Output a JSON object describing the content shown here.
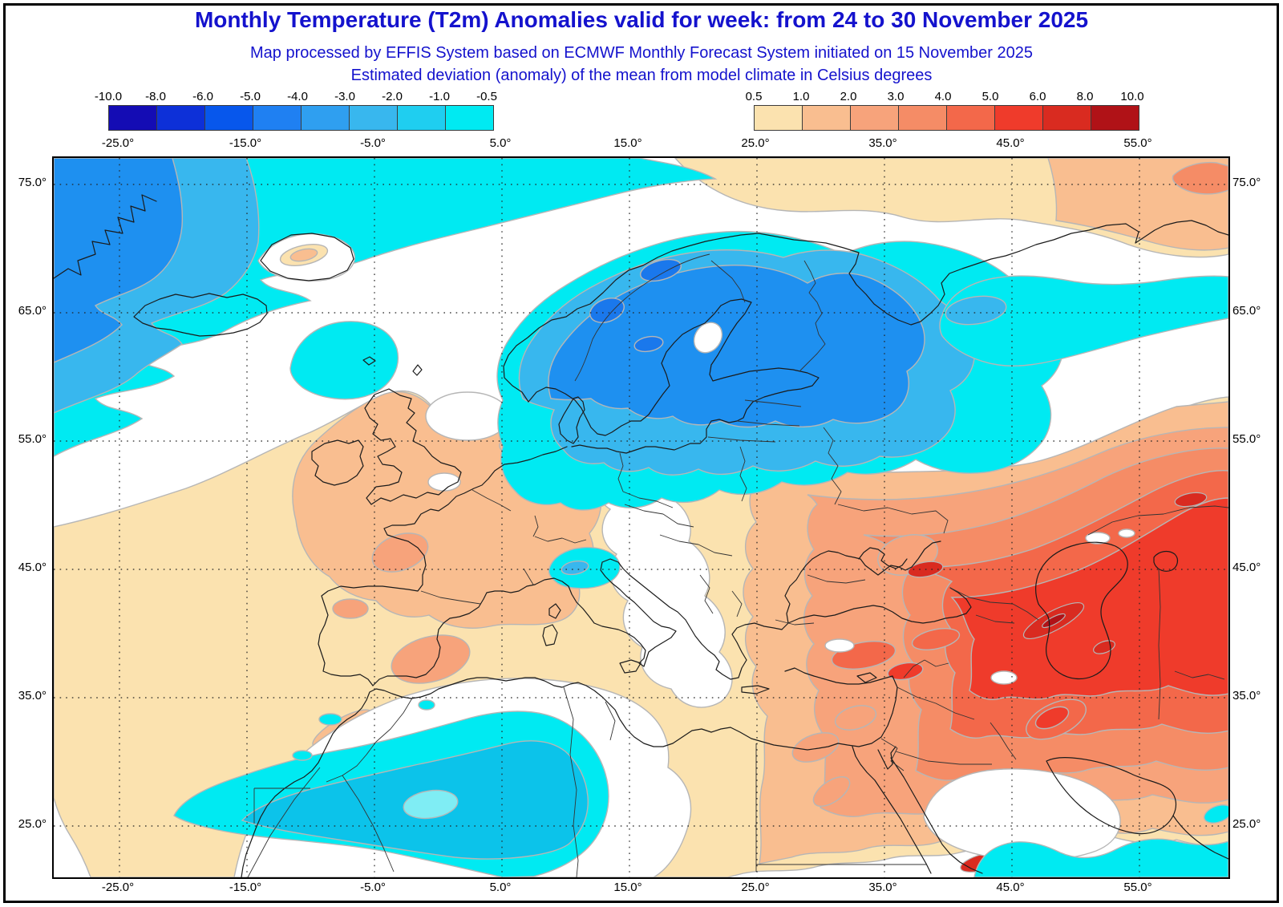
{
  "header": {
    "title": "Monthly Temperature (T2m) Anomalies valid for week: from 24 to 30 November 2025",
    "subtitle1": "Map processed by EFFIS System based on ECMWF Monthly Forecast System initiated on 15 November 2025",
    "subtitle2": "Estimated deviation (anomaly) of the mean from model climate in Celsius degrees"
  },
  "legend_negative": {
    "labels": [
      "-10.0",
      "-8.0",
      "-6.0",
      "-5.0",
      "-4.0",
      "-3.0",
      "-2.0",
      "-1.0",
      "-0.5"
    ],
    "colors": [
      "#140cb4",
      "#0d30d8",
      "#0757ec",
      "#1f80f2",
      "#2f9ff0",
      "#38b7ee",
      "#1fcef0",
      "#00eaf2"
    ]
  },
  "legend_positive": {
    "labels": [
      "0.5",
      "1.0",
      "2.0",
      "3.0",
      "4.0",
      "5.0",
      "6.0",
      "8.0",
      "10.0"
    ],
    "colors": [
      "#fbe2af",
      "#f9be90",
      "#f7a37b",
      "#f58c66",
      "#f3684a",
      "#ef3b2b",
      "#d92b20",
      "#b01217"
    ]
  },
  "axis": {
    "lon_labels": [
      "-25.0°",
      "-15.0°",
      "-5.0°",
      "5.0°",
      "15.0°",
      "25.0°",
      "35.0°",
      "45.0°",
      "55.0°"
    ],
    "lat_labels": [
      "75.0°",
      "65.0°",
      "55.0°",
      "45.0°",
      "35.0°",
      "25.0°"
    ]
  },
  "map_data": {
    "type": "filled-contour anomaly map",
    "unit": "Celsius degrees",
    "anomaly_regions": [
      {
        "area": "Greenland Sea / NW corner",
        "anomaly": "-0.5 to -5"
      },
      {
        "area": "Scandinavia, Finland, NW Russia",
        "anomaly": "-0.5 to -4"
      },
      {
        "area": "Barents coast band (NE)",
        "anomaly": "-0.5 to -2"
      },
      {
        "area": "Alps",
        "anomaly": "-0.5 to -2"
      },
      {
        "area": "North Africa (Algeria/Libya)",
        "anomaly": "-0.5 to -2"
      },
      {
        "area": "Persian Gulf / Arabian Sea edge",
        "anomaly": "-0.5 to -1"
      },
      {
        "area": "Atlantic, Iberia, France, UK",
        "anomaly": "+0.5 to +3"
      },
      {
        "area": "Eastern Europe, Ukraine, Turkey",
        "anomaly": "+2 to +5"
      },
      {
        "area": "S Russia, Kazakhstan, Caspian region",
        "anomaly": "+5 to +8"
      },
      {
        "area": "Caucasus hot spots",
        "anomaly": "+8 to +10"
      },
      {
        "area": "Central Europe / Balkans / Baltic states / Sahara core / central Arabia",
        "anomaly": "near 0 (white)"
      }
    ]
  }
}
